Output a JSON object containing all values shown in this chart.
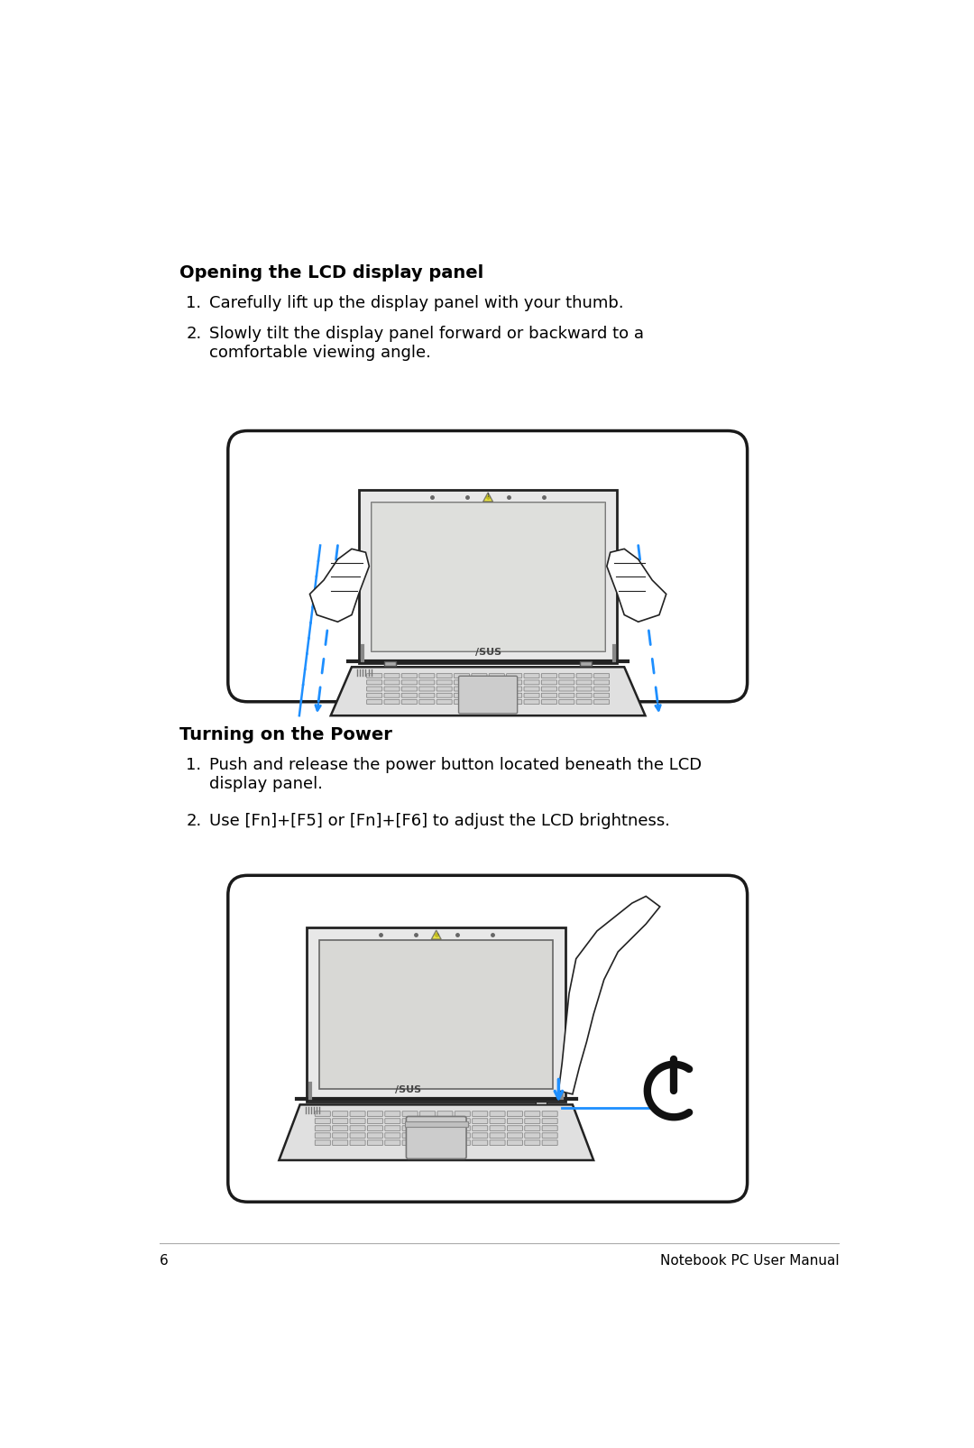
{
  "bg_color": "#ffffff",
  "page_number": "6",
  "footer_text": "Notebook PC User Manual",
  "section1_title": "Opening the LCD display panel",
  "section1_items": [
    "Carefully lift up the display panel with your thumb.",
    "Slowly tilt the display panel forward or backward to a\ncomfortable viewing angle."
  ],
  "section2_title": "Turning on the Power",
  "section2_items": [
    "Push and release the power button located beneath the LCD\ndisplay panel.",
    "Use [Fn]+[F5] or [Fn]+[F6] to adjust the LCD brightness."
  ],
  "text_color": "#000000",
  "title_fontsize": 14,
  "body_fontsize": 13,
  "footer_fontsize": 11,
  "line_color": "#222222",
  "blue_arrow": "#1E8FFF"
}
